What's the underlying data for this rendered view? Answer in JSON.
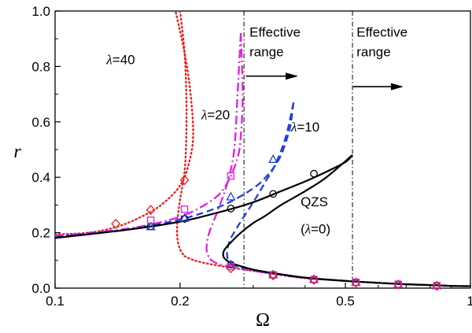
{
  "chart_data": {
    "type": "line",
    "xlabel": "Ω",
    "ylabel": "r",
    "xscale": "log",
    "xlim": [
      0.1,
      1.0
    ],
    "ylim": [
      0.0,
      1.0
    ],
    "x_ticks": [
      {
        "v": 0.1,
        "label": "0.1"
      },
      {
        "v": 0.2,
        "label": "0.2"
      },
      {
        "v": 0.5,
        "label": "0.5"
      },
      {
        "v": 1.0,
        "label": "1"
      }
    ],
    "y_ticks": [
      {
        "v": 0.0,
        "label": "0.0"
      },
      {
        "v": 0.2,
        "label": "0.2"
      },
      {
        "v": 0.4,
        "label": "0.4"
      },
      {
        "v": 0.6,
        "label": "0.6"
      },
      {
        "v": 0.8,
        "label": "0.8"
      },
      {
        "v": 1.0,
        "label": "1.0"
      }
    ],
    "series": [
      {
        "name": "QZS (λ=0)",
        "color": "#000000",
        "style": "solid",
        "upper": [
          [
            0.1,
            0.181
          ],
          [
            0.15,
            0.211
          ],
          [
            0.2,
            0.24
          ],
          [
            0.25,
            0.275
          ],
          [
            0.3,
            0.31
          ],
          [
            0.35,
            0.35
          ],
          [
            0.4,
            0.385
          ],
          [
            0.45,
            0.42
          ],
          [
            0.5,
            0.455
          ],
          [
            0.52,
            0.48
          ]
        ],
        "middle": [
          [
            0.52,
            0.48
          ],
          [
            0.45,
            0.4
          ],
          [
            0.4,
            0.35
          ],
          [
            0.35,
            0.3
          ],
          [
            0.32,
            0.26
          ],
          [
            0.3,
            0.235
          ],
          [
            0.28,
            0.2
          ],
          [
            0.265,
            0.165
          ],
          [
            0.255,
            0.135
          ],
          [
            0.255,
            0.11
          ],
          [
            0.265,
            0.09
          ]
        ],
        "lower": [
          [
            0.265,
            0.09
          ],
          [
            0.3,
            0.067
          ],
          [
            0.35,
            0.05
          ],
          [
            0.4,
            0.038
          ],
          [
            0.5,
            0.026
          ],
          [
            0.6,
            0.019
          ],
          [
            0.7,
            0.014
          ],
          [
            0.8,
            0.011
          ],
          [
            0.9,
            0.008
          ],
          [
            1.0,
            0.007
          ]
        ],
        "markers": {
          "symbol": "circle",
          "points": [
            [
              0.17,
              0.223
            ],
            [
              0.205,
              0.25
            ],
            [
              0.265,
              0.287
            ],
            [
              0.335,
              0.34
            ],
            [
              0.42,
              0.413
            ],
            [
              0.265,
              0.085
            ],
            [
              0.335,
              0.049
            ],
            [
              0.42,
              0.032
            ],
            [
              0.53,
              0.021
            ],
            [
              0.67,
              0.014
            ],
            [
              0.83,
              0.009
            ]
          ]
        }
      },
      {
        "name": "λ=10",
        "color": "#1f3fe0",
        "style": "dashed",
        "upper": [
          [
            0.1,
            0.185
          ],
          [
            0.15,
            0.212
          ],
          [
            0.2,
            0.248
          ],
          [
            0.25,
            0.295
          ],
          [
            0.3,
            0.36
          ],
          [
            0.33,
            0.42
          ],
          [
            0.35,
            0.48
          ],
          [
            0.365,
            0.56
          ],
          [
            0.37,
            0.6
          ],
          [
            0.375,
            0.67
          ]
        ],
        "middle": [
          [
            0.375,
            0.67
          ],
          [
            0.36,
            0.55
          ],
          [
            0.34,
            0.45
          ],
          [
            0.32,
            0.38
          ],
          [
            0.3,
            0.31
          ],
          [
            0.28,
            0.24
          ],
          [
            0.265,
            0.18
          ],
          [
            0.26,
            0.14
          ],
          [
            0.26,
            0.11
          ],
          [
            0.265,
            0.085
          ]
        ],
        "lower": [
          [
            0.265,
            0.085
          ],
          [
            0.3,
            0.065
          ],
          [
            0.35,
            0.049
          ],
          [
            0.4,
            0.037
          ],
          [
            0.5,
            0.026
          ],
          [
            0.6,
            0.019
          ],
          [
            0.7,
            0.014
          ],
          [
            0.8,
            0.011
          ],
          [
            0.9,
            0.008
          ],
          [
            1.0,
            0.007
          ]
        ],
        "markers": {
          "symbol": "triangle",
          "points": [
            [
              0.17,
              0.222
            ],
            [
              0.205,
              0.253
            ],
            [
              0.265,
              0.33
            ],
            [
              0.335,
              0.465
            ],
            [
              0.265,
              0.085
            ],
            [
              0.335,
              0.049
            ],
            [
              0.42,
              0.032
            ],
            [
              0.53,
              0.021
            ],
            [
              0.67,
              0.014
            ],
            [
              0.83,
              0.009
            ]
          ]
        }
      },
      {
        "name": "λ=20",
        "color": "#e020e0",
        "style": "dashdot",
        "upper": [
          [
            0.1,
            0.188
          ],
          [
            0.15,
            0.215
          ],
          [
            0.2,
            0.258
          ],
          [
            0.24,
            0.32
          ],
          [
            0.26,
            0.38
          ],
          [
            0.275,
            0.47
          ],
          [
            0.28,
            0.55
          ],
          [
            0.283,
            0.7
          ],
          [
            0.28,
            0.92
          ]
        ],
        "middle": [
          [
            0.28,
            0.92
          ],
          [
            0.275,
            0.7
          ],
          [
            0.27,
            0.5
          ],
          [
            0.26,
            0.38
          ],
          [
            0.245,
            0.27
          ],
          [
            0.235,
            0.2
          ],
          [
            0.232,
            0.16
          ],
          [
            0.232,
            0.13
          ],
          [
            0.236,
            0.105
          ]
        ],
        "lower": [
          [
            0.236,
            0.105
          ],
          [
            0.25,
            0.085
          ],
          [
            0.3,
            0.063
          ],
          [
            0.35,
            0.048
          ],
          [
            0.4,
            0.037
          ],
          [
            0.5,
            0.026
          ],
          [
            0.6,
            0.019
          ],
          [
            0.7,
            0.014
          ],
          [
            0.8,
            0.011
          ],
          [
            0.9,
            0.008
          ],
          [
            1.0,
            0.007
          ]
        ],
        "markers": {
          "symbol": "square",
          "points": [
            [
              0.17,
              0.245
            ],
            [
              0.205,
              0.285
            ],
            [
              0.265,
              0.405
            ],
            [
              0.265,
              0.078
            ],
            [
              0.335,
              0.048
            ],
            [
              0.42,
              0.031
            ],
            [
              0.53,
              0.021
            ],
            [
              0.67,
              0.014
            ],
            [
              0.83,
              0.009
            ]
          ]
        }
      },
      {
        "name": "λ=40",
        "color": "#ee1c1c",
        "style": "dotted",
        "upper": [
          [
            0.1,
            0.194
          ],
          [
            0.12,
            0.2
          ],
          [
            0.14,
            0.22
          ],
          [
            0.16,
            0.255
          ],
          [
            0.18,
            0.3
          ],
          [
            0.2,
            0.37
          ],
          [
            0.21,
            0.45
          ],
          [
            0.215,
            0.55
          ],
          [
            0.212,
            0.7
          ],
          [
            0.205,
            0.85
          ],
          [
            0.195,
            1.0
          ]
        ],
        "middle": [
          [
            0.2,
            1.0
          ],
          [
            0.205,
            0.85
          ],
          [
            0.207,
            0.7
          ],
          [
            0.207,
            0.55
          ],
          [
            0.205,
            0.42
          ],
          [
            0.2,
            0.32
          ],
          [
            0.197,
            0.24
          ],
          [
            0.197,
            0.18
          ],
          [
            0.2,
            0.14
          ],
          [
            0.205,
            0.115
          ]
        ],
        "lower": [
          [
            0.205,
            0.115
          ],
          [
            0.22,
            0.097
          ],
          [
            0.25,
            0.08
          ],
          [
            0.3,
            0.062
          ],
          [
            0.35,
            0.047
          ],
          [
            0.4,
            0.036
          ],
          [
            0.5,
            0.026
          ],
          [
            0.6,
            0.019
          ],
          [
            0.7,
            0.014
          ],
          [
            0.8,
            0.011
          ],
          [
            0.9,
            0.008
          ],
          [
            1.0,
            0.007
          ]
        ],
        "markers": {
          "symbol": "diamond",
          "points": [
            [
              0.14,
              0.232
            ],
            [
              0.17,
              0.282
            ],
            [
              0.205,
              0.39
            ],
            [
              0.265,
              0.072
            ],
            [
              0.335,
              0.046
            ],
            [
              0.42,
              0.03
            ],
            [
              0.53,
              0.02
            ],
            [
              0.67,
              0.013
            ],
            [
              0.83,
              0.008
            ]
          ]
        }
      }
    ],
    "vlines": [
      0.285,
      0.52
    ],
    "annotations": [
      {
        "text_lines": [
          "Effective",
          "range"
        ],
        "x": 0.29,
        "y_top": 0.925,
        "arrow": {
          "x1": 0.288,
          "x2": 0.385,
          "y": 0.765
        }
      },
      {
        "text_lines": [
          "Effective",
          "range"
        ],
        "x": 0.525,
        "y_top": 0.925,
        "arrow": {
          "x1": 0.522,
          "x2": 0.69,
          "y": 0.727
        }
      }
    ],
    "curve_labels": [
      {
        "prefix": "λ",
        "suffix": "=40",
        "x": 0.133,
        "y": 0.808
      },
      {
        "prefix": "λ",
        "suffix": "=20",
        "x": 0.225,
        "y": 0.61
      },
      {
        "prefix": "λ",
        "suffix": "=10",
        "x": 0.37,
        "y": 0.565
      },
      {
        "text": "QZS",
        "x": 0.39,
        "y": 0.295
      },
      {
        "prefix_plain": "(",
        "prefix": "λ",
        "suffix": "=0)",
        "x": 0.39,
        "y": 0.198
      }
    ]
  }
}
